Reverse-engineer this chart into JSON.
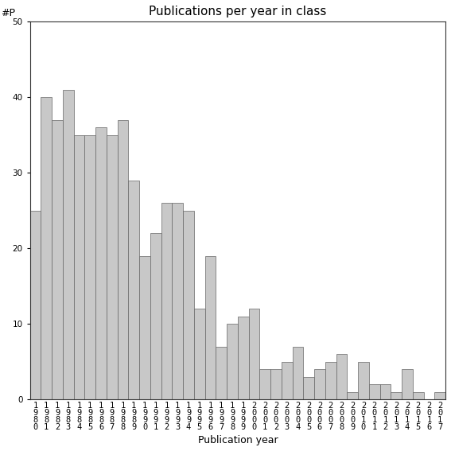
{
  "title": "Publications per year in class",
  "xlabel": "Publication year",
  "ylabel": "#P",
  "ylim": [
    0,
    50
  ],
  "yticks": [
    0,
    10,
    20,
    30,
    40,
    50
  ],
  "categories": [
    "1\n9\n8\n0",
    "1\n9\n8\n1",
    "1\n9\n8\n2",
    "1\n9\n8\n3",
    "1\n9\n8\n4",
    "1\n9\n8\n5",
    "1\n9\n8\n6",
    "1\n9\n8\n7",
    "1\n9\n8\n8",
    "1\n9\n8\n9",
    "1\n9\n9\n0",
    "1\n9\n9\n1",
    "1\n9\n9\n2",
    "1\n9\n9\n3",
    "1\n9\n9\n4",
    "1\n9\n9\n5",
    "1\n9\n9\n6",
    "1\n9\n9\n7",
    "1\n9\n9\n8",
    "1\n9\n9\n9",
    "2\n0\n0\n0",
    "2\n0\n0\n1",
    "2\n0\n0\n2",
    "2\n0\n0\n3",
    "2\n0\n0\n4",
    "2\n0\n0\n5",
    "2\n0\n0\n6",
    "2\n0\n0\n7",
    "2\n0\n0\n8",
    "2\n0\n0\n9",
    "2\n0\n1\n0",
    "2\n0\n1\n1",
    "2\n0\n1\n2",
    "2\n0\n1\n3",
    "2\n0\n1\n4",
    "2\n0\n1\n5",
    "2\n0\n1\n6",
    "2\n0\n1\n7"
  ],
  "values": [
    25,
    40,
    37,
    41,
    35,
    35,
    36,
    35,
    37,
    29,
    19,
    22,
    26,
    26,
    25,
    12,
    19,
    7,
    10,
    11,
    12,
    4,
    4,
    5,
    7,
    3,
    4,
    5,
    6,
    1,
    5,
    2,
    2,
    1,
    4,
    1,
    0,
    1
  ],
  "bar_color": "#c8c8c8",
  "bar_edgecolor": "#666666",
  "background_color": "#ffffff",
  "title_fontsize": 11,
  "axis_label_fontsize": 9,
  "tick_fontsize": 7.5
}
